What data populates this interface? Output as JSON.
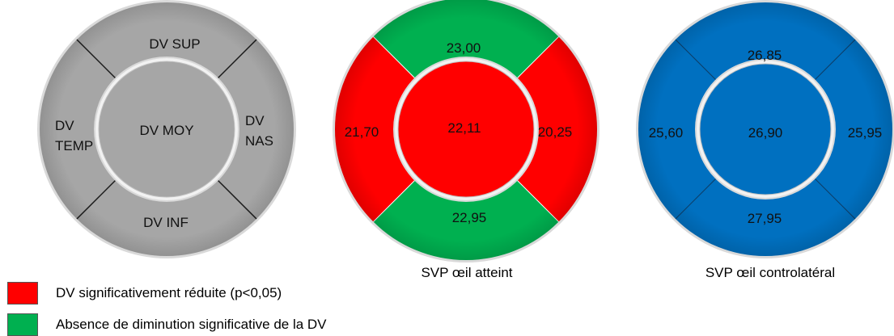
{
  "diagrams": [
    {
      "id": "reference",
      "sectors": {
        "superior": "DV SUP",
        "nasal": [
          "DV",
          "NAS"
        ],
        "inferior": "DV INF",
        "temporal": [
          "DV",
          "TEMP"
        ]
      },
      "center": "DV MOY",
      "caption": "",
      "colors": {
        "superior": "#a6a6a6",
        "nasal": "#a6a6a6",
        "inferior": "#a6a6a6",
        "temporal": "#a6a6a6",
        "center": "#a6a6a6"
      }
    },
    {
      "id": "affected-eye",
      "sectors": {
        "superior": "23,00",
        "nasal": "20,25",
        "inferior": "22,95",
        "temporal": "21,70"
      },
      "center": "22,11",
      "caption": "SVP œil atteint",
      "colors": {
        "superior": "#00b050",
        "nasal": "#ff0000",
        "inferior": "#00b050",
        "temporal": "#ff0000",
        "center": "#ff0000"
      }
    },
    {
      "id": "contralateral-eye",
      "sectors": {
        "superior": "26,85",
        "nasal": "25,95",
        "inferior": "27,95",
        "temporal": "25,60"
      },
      "center": "26,90",
      "caption": "SVP œil controlatéral",
      "colors": {
        "superior": "#0070c0",
        "nasal": "#0070c0",
        "inferior": "#0070c0",
        "temporal": "#0070c0",
        "center": "#0070c0"
      }
    }
  ],
  "legend": [
    {
      "color": "#ff0000",
      "text": "DV significativement réduite (p<0,05)"
    },
    {
      "color": "#00b050",
      "text": "Absence de diminution significative de la DV"
    }
  ]
}
